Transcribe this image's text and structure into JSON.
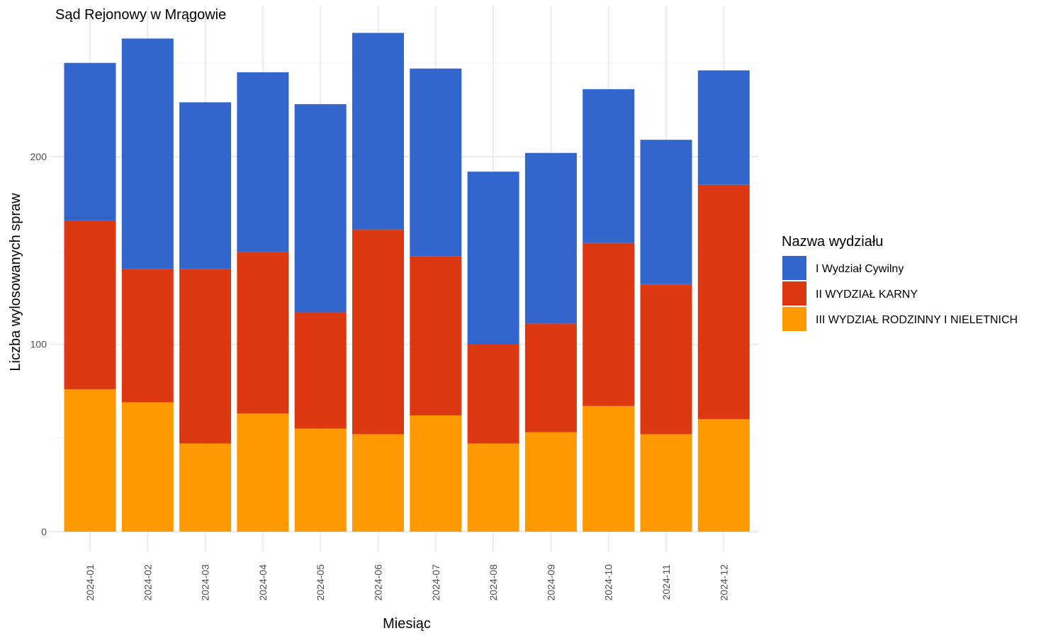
{
  "chart_data": {
    "type": "bar",
    "stacked": true,
    "title": "Sąd Rejonowy w Mrągowie",
    "xlabel": "Miesiąc",
    "ylabel": "Liczba wylosowanych spraw",
    "ylim": [
      0,
      270
    ],
    "yticks": [
      0,
      100,
      200
    ],
    "grid": true,
    "legend_position": "right",
    "legend_title": "Nazwa wydziału",
    "categories": [
      "2024-01",
      "2024-02",
      "2024-03",
      "2024-04",
      "2024-05",
      "2024-06",
      "2024-07",
      "2024-08",
      "2024-09",
      "2024-10",
      "2024-11",
      "2024-12"
    ],
    "series": [
      {
        "name": "III WYDZIAŁ RODZINNY I NIELETNICH",
        "color": "#FF9900",
        "values": [
          76,
          69,
          47,
          63,
          55,
          52,
          62,
          47,
          53,
          67,
          52,
          60
        ]
      },
      {
        "name": "II WYDZIAŁ KARNY",
        "color": "#DC3912",
        "values": [
          90,
          71,
          93,
          86,
          62,
          109,
          85,
          53,
          58,
          87,
          80,
          125
        ]
      },
      {
        "name": "I Wydział Cywilny",
        "color": "#3366CC",
        "values": [
          84,
          123,
          89,
          96,
          111,
          105,
          100,
          92,
          91,
          82,
          77,
          61
        ]
      }
    ],
    "legend_order": [
      "I Wydział Cywilny",
      "II WYDZIAŁ KARNY",
      "III WYDZIAŁ RODZINNY I NIELETNICH"
    ]
  }
}
